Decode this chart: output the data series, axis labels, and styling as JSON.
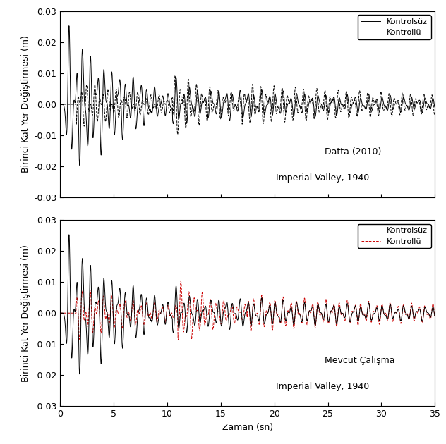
{
  "xlabel": "Zaman (sn)",
  "ylabel": "Birinci Kat Yer Değiştirmesi (m)",
  "xlim": [
    0,
    35
  ],
  "ylim": [
    -0.03,
    0.03
  ],
  "xticks": [
    0,
    5,
    10,
    15,
    20,
    25,
    30,
    35
  ],
  "yticks": [
    -0.03,
    -0.02,
    -0.01,
    0.0,
    0.01,
    0.02,
    0.03
  ],
  "legend1_labels": [
    "Kontrolsüz",
    "Kontrollü"
  ],
  "legend2_labels": [
    "Kontrolsüz",
    "Kontrollü"
  ],
  "annotation1_line1": "Datta (2010)",
  "annotation1_line2": "Imperial Valley, 1940",
  "annotation2_line1": "Mevcut Çalışma",
  "annotation2_line2": "Imperial Valley, 1940",
  "uncontrolled_color": "#000000",
  "controlled1_color": "#000000",
  "controlled2_color": "#cc0000",
  "line_width": 0.7,
  "dashed_lw": 0.7,
  "fontsize": 9
}
